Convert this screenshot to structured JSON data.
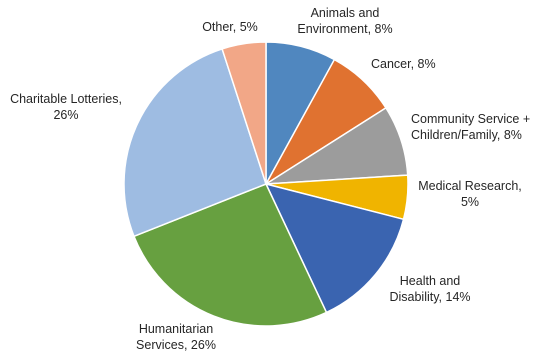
{
  "chart_data": {
    "type": "pie",
    "title": "",
    "start_angle_deg": 0,
    "direction": "clockwise",
    "slices": [
      {
        "label": "Animals and Environment",
        "value": 8,
        "display": [
          "Animals and",
          "Environment, 8%"
        ],
        "color": "#5087bf",
        "anchor": "middle"
      },
      {
        "label": "Cancer",
        "value": 8,
        "display": [
          "Cancer, 8%"
        ],
        "color": "#e07230",
        "anchor": "start"
      },
      {
        "label": "Community Service + Children/Family",
        "value": 8,
        "display": [
          "Community Service +",
          "Children/Family, 8%"
        ],
        "color": "#9c9c9c",
        "anchor": "start"
      },
      {
        "label": "Medical Research",
        "value": 5,
        "display": [
          "Medical Research,",
          "5%"
        ],
        "color": "#f0b400",
        "anchor": "middle"
      },
      {
        "label": "Health and Disability",
        "value": 14,
        "display": [
          "Health and",
          "Disability, 14%"
        ],
        "color": "#3a64b0",
        "anchor": "middle"
      },
      {
        "label": "Humanitarian Services",
        "value": 26,
        "display": [
          "Humanitarian",
          "Services, 26%"
        ],
        "color": "#67a040",
        "anchor": "middle"
      },
      {
        "label": "Charitable Lotteries",
        "value": 26,
        "display": [
          "Charitable Lotteries,",
          "26%"
        ],
        "color": "#9ebce2",
        "anchor": "middle"
      },
      {
        "label": "Other",
        "value": 5,
        "display": [
          "Other, 5%"
        ],
        "color": "#f2a787",
        "anchor": "middle"
      }
    ]
  }
}
